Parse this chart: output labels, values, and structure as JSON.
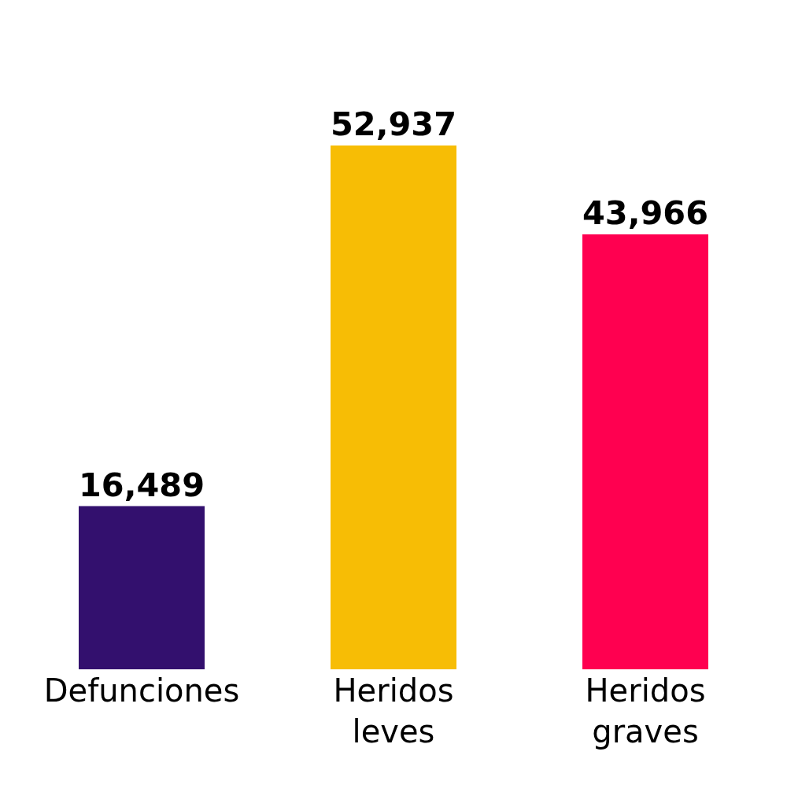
{
  "chart_data": {
    "type": "bar",
    "categories": [
      "Defunciones",
      "Heridos leves",
      "Heridos graves"
    ],
    "values": [
      16489,
      52937,
      43966
    ],
    "value_labels": [
      "16,489",
      "52,937",
      "43,966"
    ],
    "colors": [
      "#33106e",
      "#f7bd05",
      "#ff0050"
    ],
    "legend": false
  }
}
